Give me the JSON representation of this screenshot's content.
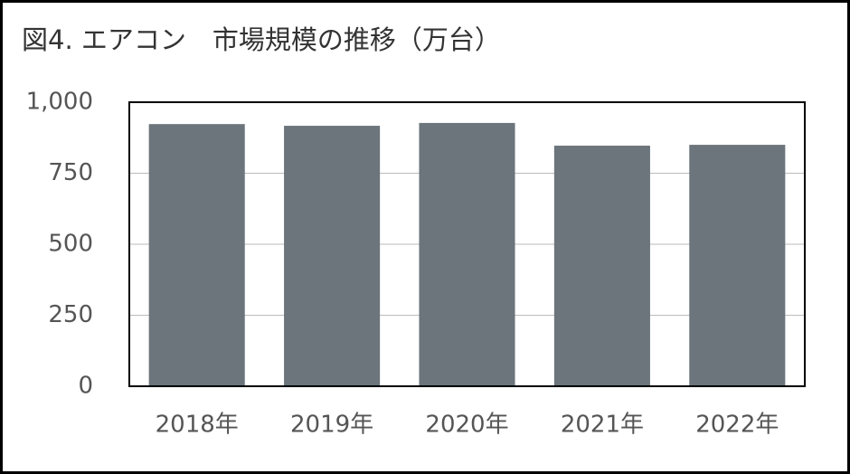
{
  "chart_data": {
    "type": "bar",
    "title": "図4. エアコン　市場規模の推移（万台）",
    "categories": [
      "2018年",
      "2019年",
      "2020年",
      "2021年",
      "2022年"
    ],
    "values": [
      923,
      917,
      927,
      847,
      850
    ],
    "color": "#6b757b",
    "ylim": [
      0,
      1000
    ],
    "yticks": [
      0,
      250,
      500,
      750,
      {
        "value": 1000,
        "label": "1,000"
      }
    ],
    "grid": true
  }
}
